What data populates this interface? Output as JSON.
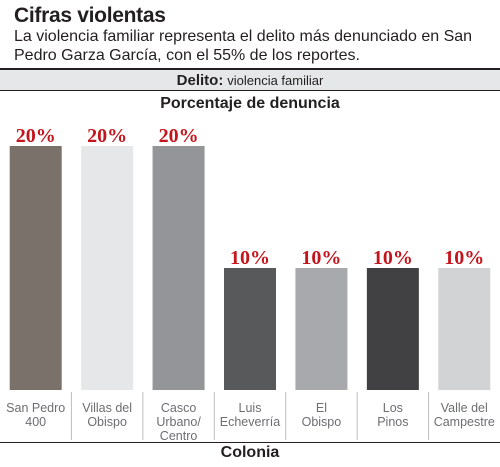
{
  "header": {
    "title": "Cifras violentas",
    "subtitle": "La violencia familiar representa el delito más denunciado en San Pedro Garza García, con el 55% de los reportes."
  },
  "filter": {
    "key": "Delito:",
    "value": "violencia familiar"
  },
  "chart_data": {
    "type": "bar",
    "title": "Porcentaje de denuncia",
    "xlabel": "Colonia",
    "ylabel": "",
    "categories": [
      [
        "San Pedro",
        "400"
      ],
      [
        "Villas del",
        "Obispo"
      ],
      [
        "Casco",
        "Urbano/",
        "Centro"
      ],
      [
        "Luis",
        "Echeverría"
      ],
      [
        "El",
        "Obispo"
      ],
      [
        "Los",
        "Pinos"
      ],
      [
        "Valle del",
        "Campestre"
      ]
    ],
    "values": [
      20,
      20,
      20,
      10,
      10,
      10,
      10
    ],
    "data_labels": [
      "20%",
      "20%",
      "20%",
      "10%",
      "10%",
      "10%",
      "10%"
    ],
    "bar_colors": [
      "#7a716b",
      "#e6e7e8",
      "#939598",
      "#58595b",
      "#a7a9ac",
      "#414042",
      "#d1d3d4"
    ],
    "ylim": [
      0,
      20
    ],
    "grid": false,
    "legend": "none",
    "colors": {
      "label": "#c4151c",
      "text": "#231f20",
      "tick": "#6d6e71",
      "separator": "#bcbec0",
      "band": "#e6e7e8"
    }
  }
}
